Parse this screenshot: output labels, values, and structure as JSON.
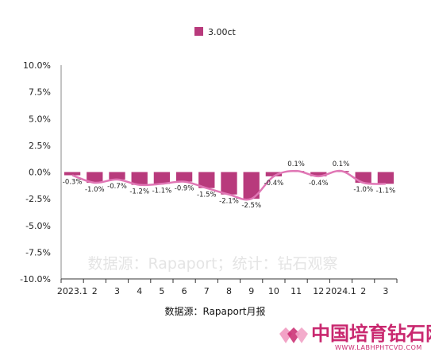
{
  "chart_data": {
    "type": "bar",
    "title": "",
    "xlabel": "",
    "ylabel": "",
    "legend": {
      "position": "top-center"
    },
    "categories": [
      "2023.1",
      "2",
      "3",
      "4",
      "5",
      "6",
      "7",
      "8",
      "9",
      "10",
      "11",
      "12",
      "2024.1",
      "2",
      "3"
    ],
    "series": [
      {
        "name": "3.00ct",
        "values": [
          -0.3,
          -1.0,
          -0.7,
          -1.2,
          -1.1,
          -0.9,
          -1.5,
          -2.1,
          -2.5,
          -0.4,
          0.1,
          -0.4,
          0.1,
          -1.0,
          -1.1
        ],
        "labels": [
          "-0.3%",
          "-1.0%",
          "-0.7%",
          "-1.2%",
          "-1.1%",
          "-0.9%",
          "-1.5%",
          "-2.1%",
          "-2.5%",
          "-0.4%",
          "0.1%",
          "-0.4%",
          "0.1%",
          "-1.0%",
          "-1.1%"
        ],
        "color": "#b83a7c"
      }
    ],
    "trend_line": {
      "color": "#e077b5",
      "smooth": true
    },
    "ylim": [
      -10,
      10
    ],
    "yticks": [
      10,
      7.5,
      5,
      2.5,
      0,
      -2.5,
      -5,
      -7.5,
      -10
    ],
    "ytick_labels": [
      "10.0%",
      "7.5%",
      "5.0%",
      "2.5%",
      "0.0%",
      "-2.5%",
      "-5.0%",
      "-7.5%",
      "-10.0%"
    ],
    "grid": false
  },
  "source_caption": "数据源：Rapaport月报",
  "watermark_text": "数据源：Rapaport；统计：钻石观察",
  "brand": {
    "name": "中国培育钻石网",
    "url": "WWW.LABHPHTCVD.COM",
    "colors": [
      "#c9286f",
      "#f2a3c6"
    ]
  }
}
